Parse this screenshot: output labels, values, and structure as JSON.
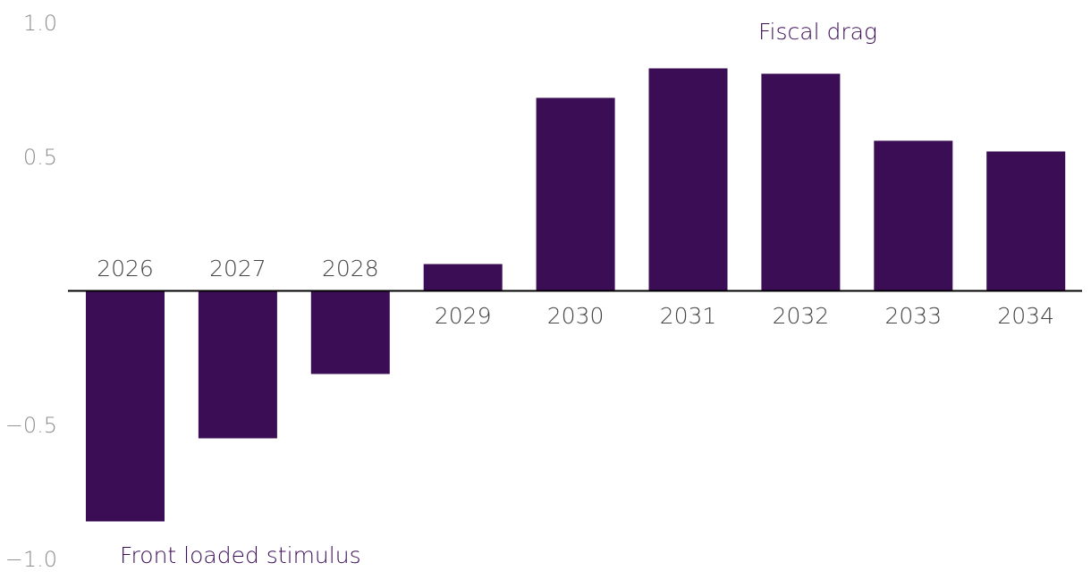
{
  "chart_data": {
    "type": "bar",
    "categories": [
      "2026",
      "2027",
      "2028",
      "2029",
      "2030",
      "2031",
      "2032",
      "2033",
      "2034"
    ],
    "values": [
      -0.86,
      -0.55,
      -0.31,
      0.1,
      0.72,
      0.83,
      0.81,
      0.56,
      0.52
    ],
    "ylim": [
      -1.0,
      1.0
    ],
    "yticks": [
      1.0,
      0.5,
      -0.5,
      -1.0
    ],
    "ytick_labels": [
      "1.0",
      "0.5",
      "−0.5",
      "−1.0"
    ],
    "annotations": {
      "positive": "Fiscal drag",
      "negative": "Front loaded stimulus"
    },
    "colors": {
      "bar": "#3b0d55",
      "annotation": "#3b0d55",
      "axis": "#000000"
    },
    "title": "",
    "xlabel": "",
    "ylabel": ""
  }
}
